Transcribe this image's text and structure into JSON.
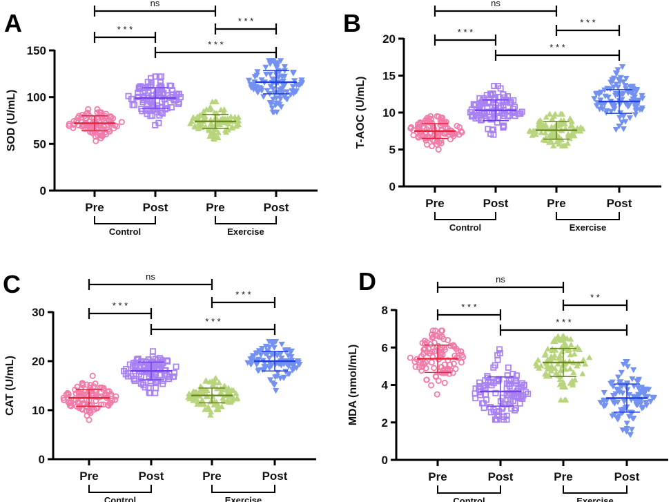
{
  "colors": {
    "control_pre": {
      "point": "#f27aa9",
      "line": "#e8233a"
    },
    "control_post": {
      "point": "#a882f2",
      "line": "#7440ee"
    },
    "exercise_pre": {
      "point": "#b8d47c",
      "line": "#6b8a1e"
    },
    "exercise_post": {
      "point": "#7391f0",
      "line": "#1c3de0"
    },
    "axis": "#000000"
  },
  "chart_data": [
    {
      "type": "scatter",
      "panel_label": "A",
      "ylabel": "SOD (U/mL)",
      "ylim": [
        0,
        150
      ],
      "yticks": [
        0,
        50,
        100,
        150
      ],
      "categories": [
        "Pre",
        "Post",
        "Pre",
        "Post"
      ],
      "groups": [
        {
          "label": "Control",
          "span": [
            0,
            1
          ]
        },
        {
          "label": "Exercise",
          "span": [
            2,
            3
          ]
        }
      ],
      "series": [
        {
          "name": "Control Pre",
          "marker": "circle",
          "mean": 72,
          "sd": 8,
          "min": 53,
          "max": 87,
          "n": 100
        },
        {
          "name": "Control Post",
          "marker": "square",
          "mean": 99,
          "sd": 11,
          "min": 70,
          "max": 122,
          "n": 100
        },
        {
          "name": "Exercise Pre",
          "marker": "triangle",
          "mean": 74,
          "sd": 7.5,
          "min": 55,
          "max": 95,
          "n": 100
        },
        {
          "name": "Exercise Post",
          "marker": "inverted-triangle",
          "mean": 116,
          "sd": 12.5,
          "min": 84,
          "max": 139,
          "n": 100
        }
      ],
      "comparisons": [
        {
          "from": 0,
          "to": 2,
          "label": "ns"
        },
        {
          "from": 0,
          "to": 1,
          "label": "* * *"
        },
        {
          "from": 2,
          "to": 3,
          "label": "* * *"
        },
        {
          "from": 1,
          "to": 3,
          "label": "* * *"
        }
      ]
    },
    {
      "type": "scatter",
      "panel_label": "B",
      "ylabel": "T-AOC (U/mL)",
      "ylim": [
        0,
        20
      ],
      "yticks": [
        0,
        5,
        10,
        15,
        20
      ],
      "categories": [
        "Pre",
        "Post",
        "Pre",
        "Post"
      ],
      "groups": [
        {
          "label": "Control",
          "span": [
            0,
            1
          ]
        },
        {
          "label": "Exercise",
          "span": [
            2,
            3
          ]
        }
      ],
      "series": [
        {
          "name": "Control Pre",
          "marker": "circle",
          "mean": 7.5,
          "sd": 1.0,
          "min": 5.0,
          "max": 9.5,
          "n": 100
        },
        {
          "name": "Control Post",
          "marker": "square",
          "mean": 10.3,
          "sd": 1.4,
          "min": 7.0,
          "max": 13.6,
          "n": 100
        },
        {
          "name": "Exercise Pre",
          "marker": "triangle",
          "mean": 7.6,
          "sd": 1.2,
          "min": 5.5,
          "max": 9.8,
          "n": 100
        },
        {
          "name": "Exercise Post",
          "marker": "inverted-triangle",
          "mean": 11.5,
          "sd": 1.6,
          "min": 7.7,
          "max": 16.2,
          "n": 100
        }
      ],
      "comparisons": [
        {
          "from": 0,
          "to": 2,
          "label": "ns"
        },
        {
          "from": 0,
          "to": 1,
          "label": "* * *"
        },
        {
          "from": 2,
          "to": 3,
          "label": "* * *"
        },
        {
          "from": 1,
          "to": 3,
          "label": "* * *"
        }
      ]
    },
    {
      "type": "scatter",
      "panel_label": "C",
      "ylabel": "CAT (U/mL)",
      "ylim": [
        0,
        30
      ],
      "yticks": [
        0,
        10,
        20,
        30
      ],
      "categories": [
        "Pre",
        "Post",
        "Pre",
        "Post"
      ],
      "groups": [
        {
          "label": "Control",
          "span": [
            0,
            1
          ]
        },
        {
          "label": "Exercise",
          "span": [
            2,
            3
          ]
        }
      ],
      "series": [
        {
          "name": "Control Pre",
          "marker": "circle",
          "mean": 12.5,
          "sd": 1.7,
          "min": 8.0,
          "max": 17.0,
          "n": 100
        },
        {
          "name": "Control Post",
          "marker": "square",
          "mean": 18.0,
          "sd": 1.8,
          "min": 13.5,
          "max": 22.0,
          "n": 100
        },
        {
          "name": "Exercise Pre",
          "marker": "triangle",
          "mean": 13.0,
          "sd": 1.5,
          "min": 9.0,
          "max": 16.5,
          "n": 100
        },
        {
          "name": "Exercise Post",
          "marker": "inverted-triangle",
          "mean": 20.0,
          "sd": 2.0,
          "min": 14.0,
          "max": 24.0,
          "n": 100
        }
      ],
      "comparisons": [
        {
          "from": 0,
          "to": 2,
          "label": "ns"
        },
        {
          "from": 0,
          "to": 1,
          "label": "* * *"
        },
        {
          "from": 2,
          "to": 3,
          "label": "* * *"
        },
        {
          "from": 1,
          "to": 3,
          "label": "* * *"
        }
      ]
    },
    {
      "type": "scatter",
      "panel_label": "D",
      "ylabel": "MDA (nmol/mL)",
      "ylim": [
        0,
        8
      ],
      "yticks": [
        0,
        2,
        4,
        6,
        8
      ],
      "categories": [
        "Pre",
        "Post",
        "Pre",
        "Post"
      ],
      "groups": [
        {
          "label": "Control",
          "span": [
            0,
            1
          ]
        },
        {
          "label": "Exercise",
          "span": [
            2,
            3
          ]
        }
      ],
      "series": [
        {
          "name": "Control Pre",
          "marker": "circle",
          "mean": 5.4,
          "sd": 0.73,
          "min": 3.5,
          "max": 6.9,
          "n": 100
        },
        {
          "name": "Control Post",
          "marker": "square",
          "mean": 3.65,
          "sd": 0.78,
          "min": 2.15,
          "max": 5.9,
          "n": 100
        },
        {
          "name": "Exercise Pre",
          "marker": "triangle",
          "mean": 5.2,
          "sd": 0.75,
          "min": 3.2,
          "max": 6.6,
          "n": 100
        },
        {
          "name": "Exercise Post",
          "marker": "inverted-triangle",
          "mean": 3.3,
          "sd": 0.75,
          "min": 1.35,
          "max": 5.25,
          "n": 100
        }
      ],
      "comparisons": [
        {
          "from": 0,
          "to": 2,
          "label": "ns"
        },
        {
          "from": 0,
          "to": 1,
          "label": "* * *"
        },
        {
          "from": 2,
          "to": 3,
          "label": "* *"
        },
        {
          "from": 1,
          "to": 3,
          "label": "* * *"
        }
      ]
    }
  ]
}
